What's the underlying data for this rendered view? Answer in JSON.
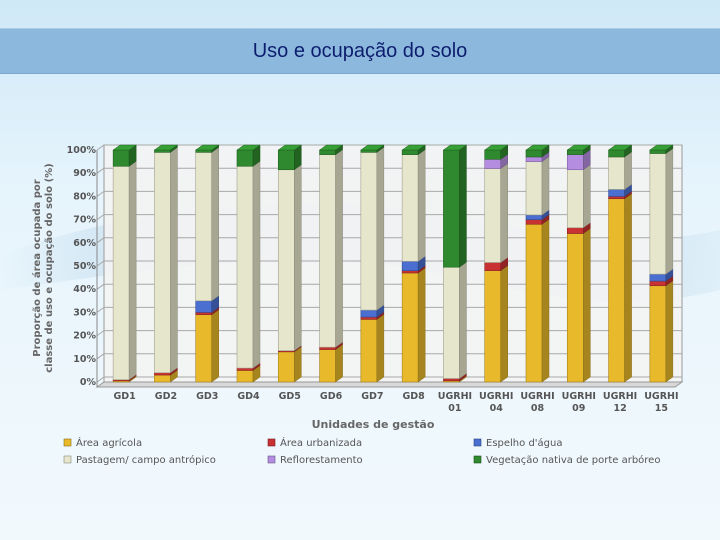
{
  "slide": {
    "title": "Uso e ocupação do solo"
  },
  "chart_data": {
    "type": "bar",
    "stacked": true,
    "categories": [
      "GD1",
      "GD2",
      "GD3",
      "GD4",
      "GD5",
      "GD6",
      "GD7",
      "GD8",
      "UGRHI 01",
      "UGRHI 04",
      "UGRHI 08",
      "UGRHI 09",
      "UGRHI 12",
      "UGRHI 15"
    ],
    "series": [
      {
        "name": "Área agrícola",
        "color": "#e8b92a",
        "values": [
          0.5,
          3,
          29,
          5,
          13,
          14,
          27,
          47,
          0.5,
          48,
          68,
          64,
          79,
          41.5
        ]
      },
      {
        "name": "Área urbanizada",
        "color": "#c83232",
        "values": [
          0.5,
          1,
          1,
          1,
          0.5,
          1,
          1,
          1,
          1,
          3.5,
          2,
          2.5,
          1,
          2
        ]
      },
      {
        "name": "Espelho d'água",
        "color": "#4a6fd0",
        "values": [
          0,
          0,
          5,
          0,
          0,
          0,
          3,
          4,
          0,
          0,
          2,
          0,
          3,
          3
        ]
      },
      {
        "name": "Pastagem/ campo antrópico",
        "color": "#e6e6cc",
        "values": [
          92,
          95,
          64,
          87,
          78,
          83,
          68,
          46,
          48,
          40.5,
          23,
          25,
          14,
          52
        ]
      },
      {
        "name": "Reflorestamento",
        "color": "#b48ce0",
        "values": [
          0,
          0,
          0,
          0,
          0,
          0,
          0,
          0,
          0,
          4,
          2,
          6.5,
          0,
          0
        ]
      },
      {
        "name": "Vegetação nativa de porte arbóreo",
        "color": "#2f8a2f",
        "values": [
          7,
          1,
          1,
          7,
          8.5,
          2,
          1,
          2,
          50.5,
          4,
          3,
          2,
          3,
          1.5
        ]
      }
    ],
    "ylabel": "Proporção de área ocupada por classe de uso e ocupação do solo (%)",
    "ylabel_lines": [
      "Proporção de área ocupada por",
      "classe de uso e ocupação do solo (%)"
    ],
    "xlabel": "Unidades de gestão",
    "ylim": [
      0,
      100
    ],
    "yticks": [
      "0%",
      "10%",
      "20%",
      "30%",
      "40%",
      "50%",
      "60%",
      "70%",
      "80%",
      "90%",
      "100%"
    ],
    "xtick_lines": [
      [
        "GD1"
      ],
      [
        "GD2"
      ],
      [
        "GD3"
      ],
      [
        "GD4"
      ],
      [
        "GD5"
      ],
      [
        "GD6"
      ],
      [
        "GD7"
      ],
      [
        "GD8"
      ],
      [
        "UGRHI",
        "01"
      ],
      [
        "UGRHI",
        "04"
      ],
      [
        "UGRHI",
        "08"
      ],
      [
        "UGRHI",
        "09"
      ],
      [
        "UGRHI",
        "12"
      ],
      [
        "UGRHI",
        "15"
      ]
    ],
    "legend": {
      "placement": "bottom",
      "order": [
        "Área agrícola",
        "Área urbanizada",
        "Espelho d'água",
        "Pastagem/ campo antrópico",
        "Reflorestamento",
        "Vegetação nativa de porte arbóreo"
      ]
    },
    "grid": true
  }
}
